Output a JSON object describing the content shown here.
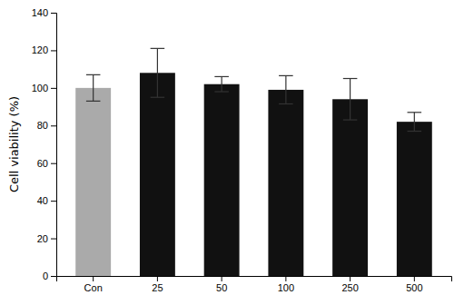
{
  "chart_data": {
    "type": "bar",
    "categories": [
      "Con",
      "25",
      "50",
      "100",
      "250",
      "500"
    ],
    "values": [
      100.0,
      108.0,
      102.0,
      99.0,
      94.0,
      82.0
    ],
    "errors": [
      7.0,
      13.0,
      4.0,
      7.5,
      11.0,
      5.0
    ],
    "colors": [
      "#aaaaaa",
      "#111111",
      "#111111",
      "#111111",
      "#111111",
      "#111111"
    ],
    "ylabel": "Cell viability (%)",
    "ylim": [
      0,
      140
    ],
    "yticks": [
      0,
      20,
      40,
      60,
      80,
      100,
      120,
      140
    ],
    "grid": false
  }
}
